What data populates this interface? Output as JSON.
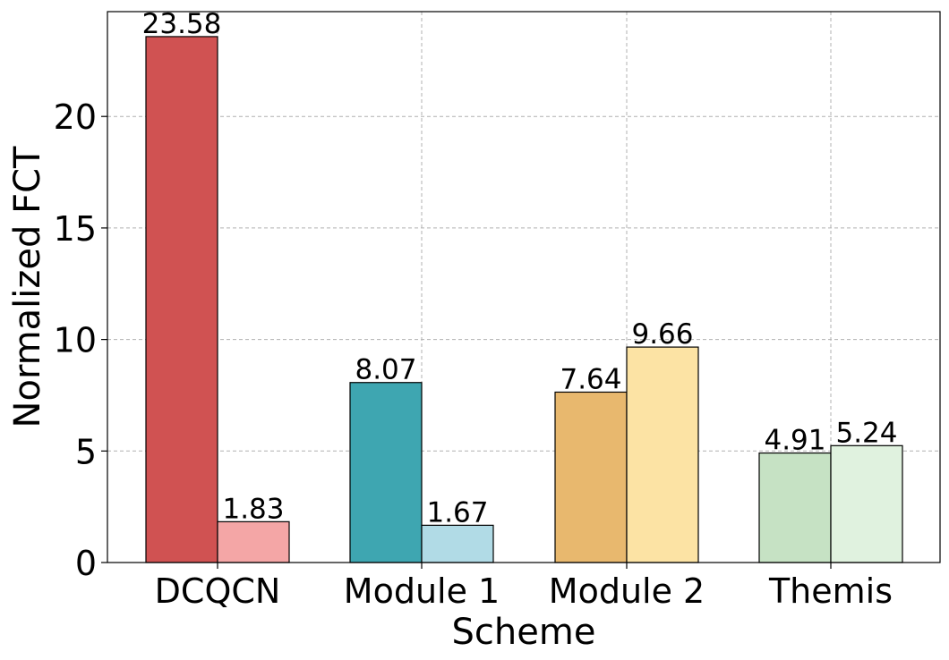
{
  "chart_data": {
    "type": "bar",
    "title": "",
    "xlabel": "Scheme",
    "ylabel": "Normalized FCT",
    "categories": [
      "DCQCN",
      "Module 1",
      "Module 2",
      "Themis"
    ],
    "ylim": [
      0,
      24.7
    ],
    "yticks": [
      0,
      5,
      10,
      15,
      20
    ],
    "grid": true,
    "series": [
      {
        "values": [
          23.58,
          8.07,
          7.64,
          4.91
        ],
        "labels": [
          "23.58",
          "8.07",
          "7.64",
          "4.91"
        ],
        "colors": [
          "#d05252",
          "#3ea6b1",
          "#e8b86e",
          "#c6e2c4"
        ]
      },
      {
        "values": [
          1.83,
          1.67,
          9.66,
          5.24
        ],
        "labels": [
          "1.83",
          "1.67",
          "9.66",
          "5.24"
        ],
        "colors": [
          "#f4a6a6",
          "#b1dbe6",
          "#fce3a4",
          "#e0f2df"
        ]
      }
    ]
  }
}
